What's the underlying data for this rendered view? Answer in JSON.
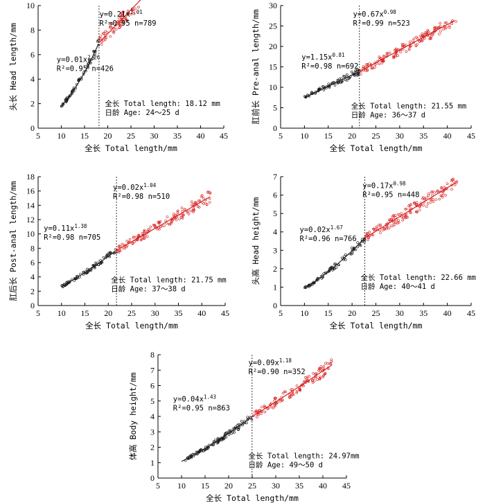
{
  "chart_data": [
    {
      "type": "scatter",
      "xlabel": "全长 Total length/mm",
      "ylabel": "头长 Head length/mm",
      "xlim": [
        5,
        45
      ],
      "ylim": [
        0,
        10
      ],
      "xticks": [
        "5",
        "10",
        "15",
        "20",
        "25",
        "30",
        "35",
        "40",
        "45"
      ],
      "yticks": [
        "0",
        "2",
        "4",
        "6",
        "8",
        "10"
      ],
      "breakpoint_x": 18.12,
      "data_range": [
        10,
        42
      ],
      "left_fit": {
        "a": 0.01,
        "b": 2.26,
        "text": "y=0.01x",
        "exp": "2.26",
        "stats": "R²=0.95  n=426"
      },
      "right_fit": {
        "a": 0.21,
        "b": 1.01,
        "text": "y=0.21x",
        "exp": "1.01",
        "stats": "R²=0.95  n=789"
      },
      "note1": "全长 Total length: 18.12 mm",
      "note2": "日龄 Age: 24～25 d"
    },
    {
      "type": "scatter",
      "xlabel": "全长 Total length/mm",
      "ylabel": "肛前长 Pre-anal length/mm",
      "xlim": [
        5,
        45
      ],
      "ylim": [
        0,
        30
      ],
      "xticks": [
        "5",
        "10",
        "15",
        "20",
        "25",
        "30",
        "35",
        "40",
        "45"
      ],
      "yticks": [
        "0",
        "5",
        "10",
        "15",
        "20",
        "25",
        "30"
      ],
      "breakpoint_x": 21.55,
      "data_range": [
        10,
        42
      ],
      "left_fit": {
        "a": 1.15,
        "b": 0.81,
        "text": "y=1.15x",
        "exp": "0.81",
        "stats": "R²=0.98  n=692"
      },
      "right_fit": {
        "a": 0.67,
        "b": 0.98,
        "text": "y=0.67x",
        "exp": "0.98",
        "stats": "R²=0.99  n=523"
      },
      "note1": "全长 Total length: 21.55 mm",
      "note2": "日龄 Age: 36～37 d"
    },
    {
      "type": "scatter",
      "xlabel": "全长 Total length/mm",
      "ylabel": "肛后长 Post-anal length/mm",
      "xlim": [
        5,
        45
      ],
      "ylim": [
        0,
        18
      ],
      "xticks": [
        "5",
        "10",
        "15",
        "20",
        "25",
        "30",
        "35",
        "40",
        "45"
      ],
      "yticks": [
        "0",
        "2",
        "4",
        "6",
        "8",
        "10",
        "12",
        "14",
        "16",
        "18"
      ],
      "breakpoint_x": 21.75,
      "data_range": [
        10,
        42
      ],
      "left_fit": {
        "a": 0.11,
        "b": 1.38,
        "text": "y=0.11x",
        "exp": "1.38",
        "stats": "R²=0.98  n=705"
      },
      "right_fit": {
        "a": 0.02,
        "b": 1.04,
        "text": "y=0.02x",
        "exp": "1.04",
        "stats": "R²=0.98  n=510"
      },
      "note1": "全长 Total length: 21.75 mm",
      "note2": "日龄 Age: 37～38 d"
    },
    {
      "type": "scatter",
      "xlabel": "全长 Total length/mm",
      "ylabel": "头高 Head height/mm",
      "xlim": [
        5,
        45
      ],
      "ylim": [
        0,
        7
      ],
      "xticks": [
        "5",
        "10",
        "15",
        "20",
        "25",
        "30",
        "35",
        "40",
        "45"
      ],
      "yticks": [
        "0",
        "1",
        "2",
        "3",
        "4",
        "5",
        "6",
        "7"
      ],
      "breakpoint_x": 22.66,
      "data_range": [
        10,
        42
      ],
      "left_fit": {
        "a": 0.02,
        "b": 1.67,
        "text": "y=0.02x",
        "exp": "1.67",
        "stats": "R²=0.96  n=766"
      },
      "right_fit": {
        "a": 0.17,
        "b": 0.98,
        "text": "y=0.17x",
        "exp": "0.98",
        "stats": "R²=0.95  n=448"
      },
      "note1": "全长 Total length: 22.66 mm",
      "note2": "日龄 Age: 40～41 d"
    },
    {
      "type": "scatter",
      "xlabel": "全长 Total length/mm",
      "ylabel": "体高 Body height/mm",
      "xlim": [
        5,
        45
      ],
      "ylim": [
        0,
        8
      ],
      "xticks": [
        "5",
        "10",
        "15",
        "20",
        "25",
        "30",
        "35",
        "40",
        "45"
      ],
      "yticks": [
        "0",
        "1",
        "2",
        "3",
        "4",
        "5",
        "6",
        "7",
        "8"
      ],
      "breakpoint_x": 24.97,
      "data_range": [
        10,
        42
      ],
      "left_fit": {
        "a": 0.04,
        "b": 1.43,
        "text": "y=0.04x",
        "exp": "1.43",
        "stats": "R²=0.95  n=863"
      },
      "right_fit": {
        "a": 0.09,
        "b": 1.18,
        "text": "y=0.09x",
        "exp": "1.18",
        "stats": "R²=0.90  n=352"
      },
      "note1": "全长 Total length: 24.97mm",
      "note2": "日龄 Age: 49～50 d"
    }
  ]
}
